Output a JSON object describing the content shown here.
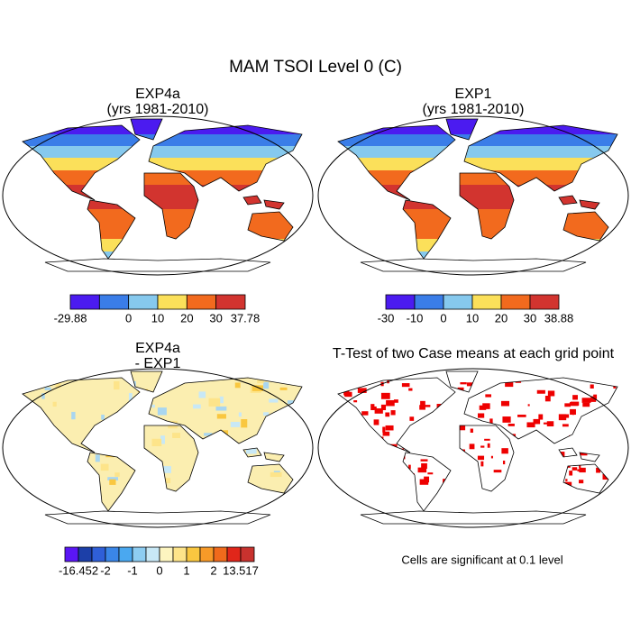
{
  "title": "MAM TSOI Level 0 (C)",
  "panels": [
    {
      "title": "EXP4a",
      "subtitle": "(yrs 1981-2010)",
      "map": "temperature",
      "colorbar": {
        "colors": [
          "#4b1bf0",
          "#3a7de8",
          "#86c9ee",
          "#fbe05a",
          "#f26a1e",
          "#d2342f"
        ],
        "labels": [
          "-29.88",
          null,
          "0",
          "10",
          "20",
          "30",
          "37.78"
        ]
      }
    },
    {
      "title": "EXP1",
      "subtitle": "(yrs 1981-2010)",
      "map": "temperature",
      "colorbar": {
        "colors": [
          "#4b1bf0",
          "#3a7de8",
          "#86c9ee",
          "#fbe05a",
          "#f26a1e",
          "#d2342f"
        ],
        "labels": [
          "-30",
          "-10",
          "0",
          "10",
          "20",
          "30",
          "38.88"
        ]
      }
    },
    {
      "title": "EXP4a",
      "subtitle": "- EXP1",
      "map": "difference",
      "colorbar": {
        "colors": [
          "#5a16f5",
          "#1c3fa8",
          "#2f5fd8",
          "#3a86e8",
          "#4aa8f0",
          "#8dcdf2",
          "#c8e8f6",
          "#fdf5c0",
          "#fde48a",
          "#f9c740",
          "#f79a28",
          "#f06a1c",
          "#e0261a",
          "#c8322e"
        ],
        "labels": [
          null,
          "-16.452",
          null,
          "-2",
          null,
          "-1",
          null,
          "0",
          null,
          "1",
          null,
          "2",
          null,
          "13.517",
          null
        ]
      }
    },
    {
      "title": "T-Test of two Case means at each grid point",
      "map": "significance",
      "note": "Cells are significant at 0.1 level"
    }
  ]
}
